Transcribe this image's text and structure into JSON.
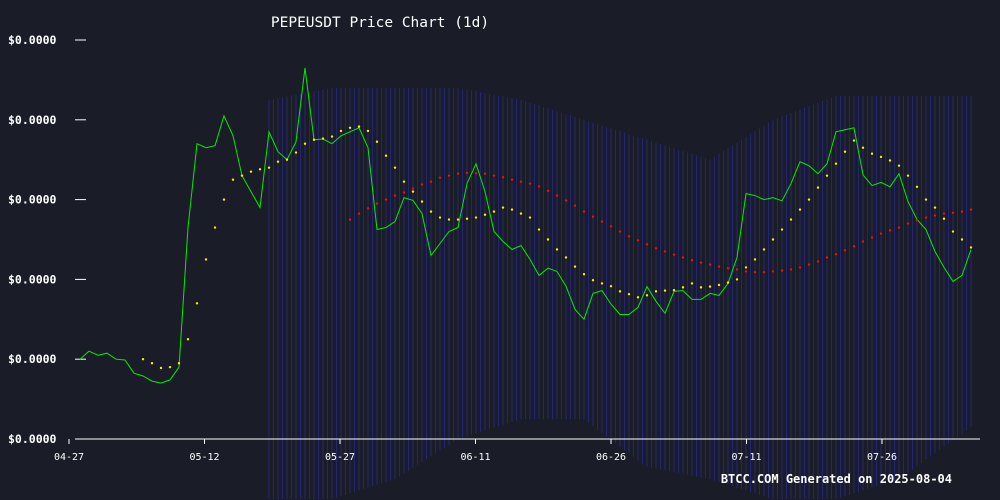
{
  "chart_data": {
    "type": "line",
    "title": "PEPEUSDT Price Chart (1d)",
    "footer": "BTCC.COM Generated on 2025-08-04",
    "x_ticks": [
      "04-27",
      "05-12",
      "05-27",
      "06-11",
      "06-26",
      "07-11",
      "07-26"
    ],
    "y_ticks": [
      "$0.0000",
      "$0.0000",
      "$0.0000",
      "$0.0000",
      "$0.0000",
      "$0.0000"
    ],
    "x_range": [
      "2025-04-27",
      "2025-08-04"
    ],
    "grid": false,
    "series": [
      {
        "style": "line",
        "color": "#00ee00",
        "points": [
          [
            "2025-04-27",
            0.2
          ],
          [
            "2025-04-28",
            0.22
          ],
          [
            "2025-04-29",
            0.21
          ],
          [
            "2025-04-30",
            0.215
          ],
          [
            "2025-05-01",
            0.2
          ],
          [
            "2025-05-02",
            0.198
          ],
          [
            "2025-05-03",
            0.165
          ],
          [
            "2025-05-04",
            0.158
          ],
          [
            "2025-05-05",
            0.145
          ],
          [
            "2025-05-06",
            0.14
          ],
          [
            "2025-05-07",
            0.148
          ],
          [
            "2025-05-08",
            0.18
          ],
          [
            "2025-05-09",
            0.53
          ],
          [
            "2025-05-10",
            0.74
          ],
          [
            "2025-05-11",
            0.73
          ],
          [
            "2025-05-12",
            0.735
          ],
          [
            "2025-05-13",
            0.81
          ],
          [
            "2025-05-14",
            0.76
          ],
          [
            "2025-05-15",
            0.66
          ],
          [
            "2025-05-16",
            0.62
          ],
          [
            "2025-05-17",
            0.58
          ],
          [
            "2025-05-18",
            0.77
          ],
          [
            "2025-05-19",
            0.72
          ],
          [
            "2025-05-20",
            0.7
          ],
          [
            "2025-05-21",
            0.745
          ],
          [
            "2025-05-22",
            0.93
          ],
          [
            "2025-05-23",
            0.75
          ],
          [
            "2025-05-24",
            0.752
          ],
          [
            "2025-05-25",
            0.74
          ],
          [
            "2025-05-26",
            0.76
          ],
          [
            "2025-05-27",
            0.77
          ],
          [
            "2025-05-28",
            0.78
          ],
          [
            "2025-05-29",
            0.73
          ],
          [
            "2025-05-30",
            0.525
          ],
          [
            "2025-05-31",
            0.53
          ],
          [
            "2025-06-01",
            0.545
          ],
          [
            "2025-06-02",
            0.605
          ],
          [
            "2025-06-03",
            0.598
          ],
          [
            "2025-06-04",
            0.565
          ],
          [
            "2025-06-05",
            0.46
          ],
          [
            "2025-06-06",
            0.49
          ],
          [
            "2025-06-07",
            0.52
          ],
          [
            "2025-06-08",
            0.53
          ],
          [
            "2025-06-09",
            0.64
          ],
          [
            "2025-06-10",
            0.69
          ],
          [
            "2025-06-11",
            0.62
          ],
          [
            "2025-06-12",
            0.52
          ],
          [
            "2025-06-13",
            0.495
          ],
          [
            "2025-06-14",
            0.475
          ],
          [
            "2025-06-15",
            0.485
          ],
          [
            "2025-06-16",
            0.45
          ],
          [
            "2025-06-17",
            0.41
          ],
          [
            "2025-06-18",
            0.428
          ],
          [
            "2025-06-19",
            0.42
          ],
          [
            "2025-06-20",
            0.383
          ],
          [
            "2025-06-21",
            0.325
          ],
          [
            "2025-06-22",
            0.3
          ],
          [
            "2025-06-23",
            0.365
          ],
          [
            "2025-06-24",
            0.372
          ],
          [
            "2025-06-25",
            0.338
          ],
          [
            "2025-06-26",
            0.312
          ],
          [
            "2025-06-27",
            0.312
          ],
          [
            "2025-06-28",
            0.33
          ],
          [
            "2025-06-29",
            0.382
          ],
          [
            "2025-06-30",
            0.345
          ],
          [
            "2025-07-01",
            0.315
          ],
          [
            "2025-07-02",
            0.37
          ],
          [
            "2025-07-03",
            0.372
          ],
          [
            "2025-07-04",
            0.35
          ],
          [
            "2025-07-05",
            0.35
          ],
          [
            "2025-07-06",
            0.365
          ],
          [
            "2025-07-07",
            0.36
          ],
          [
            "2025-07-08",
            0.39
          ],
          [
            "2025-07-09",
            0.455
          ],
          [
            "2025-07-10",
            0.615
          ],
          [
            "2025-07-11",
            0.61
          ],
          [
            "2025-07-12",
            0.6
          ],
          [
            "2025-07-13",
            0.605
          ],
          [
            "2025-07-14",
            0.597
          ],
          [
            "2025-07-15",
            0.64
          ],
          [
            "2025-07-16",
            0.695
          ],
          [
            "2025-07-17",
            0.685
          ],
          [
            "2025-07-18",
            0.665
          ],
          [
            "2025-07-19",
            0.69
          ],
          [
            "2025-07-20",
            0.77
          ],
          [
            "2025-07-21",
            0.775
          ],
          [
            "2025-07-22",
            0.78
          ],
          [
            "2025-07-23",
            0.662
          ],
          [
            "2025-07-24",
            0.635
          ],
          [
            "2025-07-25",
            0.643
          ],
          [
            "2025-07-26",
            0.632
          ],
          [
            "2025-07-27",
            0.665
          ],
          [
            "2025-07-28",
            0.595
          ],
          [
            "2025-07-29",
            0.55
          ],
          [
            "2025-07-30",
            0.525
          ],
          [
            "2025-07-31",
            0.47
          ],
          [
            "2025-08-01",
            0.43
          ],
          [
            "2025-08-02",
            0.395
          ],
          [
            "2025-08-03",
            0.41
          ],
          [
            "2025-08-04",
            0.475
          ]
        ]
      },
      {
        "style": "dots",
        "color": "#ffee00",
        "points": [
          [
            "2025-05-04",
            0.2
          ],
          [
            "2025-05-05",
            0.19
          ],
          [
            "2025-05-06",
            0.178
          ],
          [
            "2025-05-07",
            0.18
          ],
          [
            "2025-05-08",
            0.19
          ],
          [
            "2025-05-09",
            0.25
          ],
          [
            "2025-05-10",
            0.34
          ],
          [
            "2025-05-11",
            0.45
          ],
          [
            "2025-05-12",
            0.53
          ],
          [
            "2025-05-13",
            0.6
          ],
          [
            "2025-05-14",
            0.65
          ],
          [
            "2025-05-15",
            0.66
          ],
          [
            "2025-05-16",
            0.67
          ],
          [
            "2025-05-17",
            0.676
          ],
          [
            "2025-05-18",
            0.68
          ],
          [
            "2025-05-19",
            0.695
          ],
          [
            "2025-05-20",
            0.7
          ],
          [
            "2025-05-21",
            0.718
          ],
          [
            "2025-05-22",
            0.74
          ],
          [
            "2025-05-23",
            0.75
          ],
          [
            "2025-05-24",
            0.753
          ],
          [
            "2025-05-25",
            0.758
          ],
          [
            "2025-05-26",
            0.772
          ],
          [
            "2025-05-27",
            0.78
          ],
          [
            "2025-05-28",
            0.783
          ],
          [
            "2025-05-29",
            0.772
          ],
          [
            "2025-05-30",
            0.745
          ],
          [
            "2025-05-31",
            0.71
          ],
          [
            "2025-06-01",
            0.68
          ],
          [
            "2025-06-02",
            0.645
          ],
          [
            "2025-06-03",
            0.62
          ],
          [
            "2025-06-04",
            0.595
          ],
          [
            "2025-06-05",
            0.57
          ],
          [
            "2025-06-06",
            0.555
          ],
          [
            "2025-06-07",
            0.55
          ],
          [
            "2025-06-08",
            0.55
          ],
          [
            "2025-06-09",
            0.552
          ],
          [
            "2025-06-10",
            0.555
          ],
          [
            "2025-06-11",
            0.562
          ],
          [
            "2025-06-12",
            0.57
          ],
          [
            "2025-06-13",
            0.58
          ],
          [
            "2025-06-14",
            0.575
          ],
          [
            "2025-06-15",
            0.565
          ],
          [
            "2025-06-16",
            0.555
          ],
          [
            "2025-06-17",
            0.525
          ],
          [
            "2025-06-18",
            0.5
          ],
          [
            "2025-06-19",
            0.475
          ],
          [
            "2025-06-20",
            0.455
          ],
          [
            "2025-06-21",
            0.432
          ],
          [
            "2025-06-22",
            0.413
          ],
          [
            "2025-06-23",
            0.398
          ],
          [
            "2025-06-24",
            0.39
          ],
          [
            "2025-06-25",
            0.383
          ],
          [
            "2025-06-26",
            0.37
          ],
          [
            "2025-06-27",
            0.363
          ],
          [
            "2025-06-28",
            0.355
          ],
          [
            "2025-06-29",
            0.36
          ],
          [
            "2025-06-30",
            0.37
          ],
          [
            "2025-07-01",
            0.372
          ],
          [
            "2025-07-02",
            0.373
          ],
          [
            "2025-07-03",
            0.38
          ],
          [
            "2025-07-04",
            0.39
          ],
          [
            "2025-07-05",
            0.38
          ],
          [
            "2025-07-06",
            0.382
          ],
          [
            "2025-07-07",
            0.386
          ],
          [
            "2025-07-08",
            0.392
          ],
          [
            "2025-07-09",
            0.4
          ],
          [
            "2025-07-10",
            0.43
          ],
          [
            "2025-07-11",
            0.45
          ],
          [
            "2025-07-12",
            0.475
          ],
          [
            "2025-07-13",
            0.5
          ],
          [
            "2025-07-14",
            0.525
          ],
          [
            "2025-07-15",
            0.55
          ],
          [
            "2025-07-16",
            0.575
          ],
          [
            "2025-07-17",
            0.6
          ],
          [
            "2025-07-18",
            0.63
          ],
          [
            "2025-07-19",
            0.66
          ],
          [
            "2025-07-20",
            0.69
          ],
          [
            "2025-07-21",
            0.72
          ],
          [
            "2025-07-22",
            0.748
          ],
          [
            "2025-07-23",
            0.73
          ],
          [
            "2025-07-24",
            0.715
          ],
          [
            "2025-07-25",
            0.707
          ],
          [
            "2025-07-26",
            0.698
          ],
          [
            "2025-07-27",
            0.685
          ],
          [
            "2025-07-28",
            0.66
          ],
          [
            "2025-07-29",
            0.632
          ],
          [
            "2025-07-30",
            0.6
          ],
          [
            "2025-07-31",
            0.58
          ],
          [
            "2025-08-01",
            0.552
          ],
          [
            "2025-08-02",
            0.52
          ],
          [
            "2025-08-03",
            0.5
          ],
          [
            "2025-08-04",
            0.48
          ]
        ]
      },
      {
        "style": "dots",
        "color": "#ee1111",
        "points": [
          [
            "2025-05-27",
            0.55
          ],
          [
            "2025-05-28",
            0.565
          ],
          [
            "2025-05-29",
            0.578
          ],
          [
            "2025-05-30",
            0.59
          ],
          [
            "2025-05-31",
            0.6
          ],
          [
            "2025-06-01",
            0.61
          ],
          [
            "2025-06-02",
            0.618
          ],
          [
            "2025-06-03",
            0.628
          ],
          [
            "2025-06-04",
            0.638
          ],
          [
            "2025-06-05",
            0.645
          ],
          [
            "2025-06-06",
            0.655
          ],
          [
            "2025-06-07",
            0.66
          ],
          [
            "2025-06-08",
            0.665
          ],
          [
            "2025-06-09",
            0.667
          ],
          [
            "2025-06-10",
            0.666
          ],
          [
            "2025-06-11",
            0.665
          ],
          [
            "2025-06-12",
            0.66
          ],
          [
            "2025-06-13",
            0.656
          ],
          [
            "2025-06-14",
            0.65
          ],
          [
            "2025-06-15",
            0.645
          ],
          [
            "2025-06-16",
            0.64
          ],
          [
            "2025-06-17",
            0.633
          ],
          [
            "2025-06-18",
            0.622
          ],
          [
            "2025-06-19",
            0.61
          ],
          [
            "2025-06-20",
            0.598
          ],
          [
            "2025-06-21",
            0.585
          ],
          [
            "2025-06-22",
            0.57
          ],
          [
            "2025-06-23",
            0.557
          ],
          [
            "2025-06-24",
            0.545
          ],
          [
            "2025-06-25",
            0.533
          ],
          [
            "2025-06-26",
            0.52
          ],
          [
            "2025-06-27",
            0.508
          ],
          [
            "2025-06-28",
            0.498
          ],
          [
            "2025-06-29",
            0.488
          ],
          [
            "2025-06-30",
            0.478
          ],
          [
            "2025-07-01",
            0.47
          ],
          [
            "2025-07-02",
            0.462
          ],
          [
            "2025-07-03",
            0.455
          ],
          [
            "2025-07-04",
            0.448
          ],
          [
            "2025-07-05",
            0.442
          ],
          [
            "2025-07-06",
            0.437
          ],
          [
            "2025-07-07",
            0.432
          ],
          [
            "2025-07-08",
            0.428
          ],
          [
            "2025-07-09",
            0.425
          ],
          [
            "2025-07-10",
            0.42
          ],
          [
            "2025-07-11",
            0.418
          ],
          [
            "2025-07-12",
            0.418
          ],
          [
            "2025-07-13",
            0.42
          ],
          [
            "2025-07-14",
            0.422
          ],
          [
            "2025-07-15",
            0.425
          ],
          [
            "2025-07-16",
            0.43
          ],
          [
            "2025-07-17",
            0.437
          ],
          [
            "2025-07-18",
            0.445
          ],
          [
            "2025-07-19",
            0.455
          ],
          [
            "2025-07-20",
            0.463
          ],
          [
            "2025-07-21",
            0.473
          ],
          [
            "2025-07-22",
            0.483
          ],
          [
            "2025-07-23",
            0.495
          ],
          [
            "2025-07-24",
            0.505
          ],
          [
            "2025-07-25",
            0.515
          ],
          [
            "2025-07-26",
            0.523
          ],
          [
            "2025-07-27",
            0.53
          ],
          [
            "2025-07-28",
            0.54
          ],
          [
            "2025-07-29",
            0.548
          ],
          [
            "2025-07-30",
            0.555
          ],
          [
            "2025-07-31",
            0.56
          ],
          [
            "2025-08-01",
            0.565
          ],
          [
            "2025-08-02",
            0.567
          ],
          [
            "2025-08-03",
            0.57
          ],
          [
            "2025-08-04",
            0.575
          ]
        ]
      }
    ],
    "band": {
      "color": "#2a2a8a",
      "ranges": [
        [
          "2025-05-18",
          0.85,
          0.0
        ],
        [
          "2025-05-25",
          0.88,
          0.0
        ],
        [
          "2025-06-01",
          0.88,
          0.05
        ],
        [
          "2025-06-08",
          0.88,
          0.15
        ],
        [
          "2025-06-15",
          0.85,
          0.2
        ],
        [
          "2025-06-22",
          0.8,
          0.2
        ],
        [
          "2025-06-29",
          0.75,
          0.08
        ],
        [
          "2025-07-06",
          0.7,
          0.05
        ],
        [
          "2025-07-13",
          0.8,
          0.0
        ],
        [
          "2025-07-20",
          0.86,
          0.0
        ],
        [
          "2025-07-27",
          0.86,
          0.05
        ],
        [
          "2025-08-04",
          0.86,
          0.18
        ]
      ]
    }
  }
}
